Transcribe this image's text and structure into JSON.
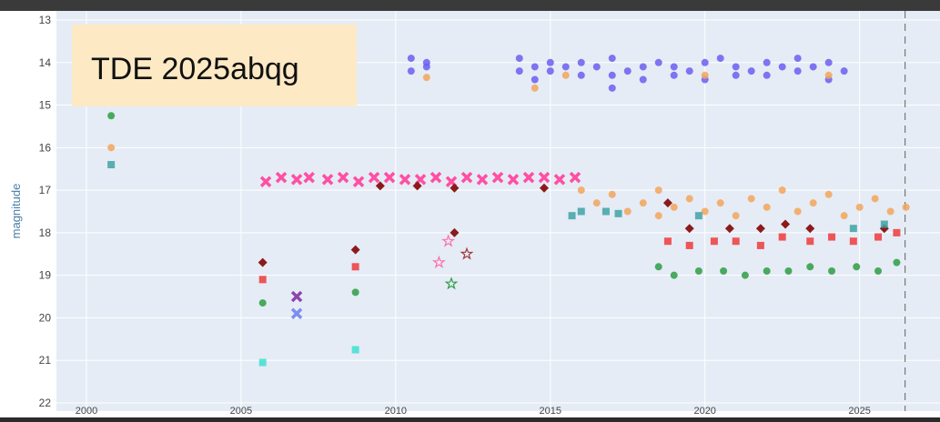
{
  "chart_data": {
    "type": "scatter",
    "title": "TDE 2025abqg",
    "y_label": "magnitude",
    "xlim": [
      1999.03,
      2027.6
    ],
    "ylim": [
      22,
      13
    ],
    "xticks": [
      2000,
      2005,
      2010,
      2015,
      2020,
      2025
    ],
    "yticks": [
      13,
      14,
      15,
      16,
      17,
      18,
      19,
      20,
      21,
      22
    ],
    "grid": true,
    "vline": 2026.47,
    "series": [
      {
        "color": "#6b5ff0",
        "symbol": "circle",
        "x": [
          2010.5,
          2010.5,
          2011.0,
          2011.0,
          2014.0,
          2014.0,
          2014.5,
          2014.5,
          2015.0,
          2015.0,
          2015.5,
          2016.0,
          2016.0,
          2016.5,
          2017.0,
          2017.0,
          2017.0,
          2017.5,
          2018.0,
          2018.0,
          2018.5,
          2019.0,
          2019.0,
          2019.5,
          2020.0,
          2020.0,
          2020.5,
          2021.0,
          2021.0,
          2021.5,
          2022.0,
          2022.0,
          2022.5,
          2023.0,
          2023.0,
          2023.5,
          2024.0,
          2024.0,
          2024.5
        ],
        "values": [
          13.9,
          14.2,
          14.0,
          14.1,
          14.2,
          13.9,
          14.1,
          14.4,
          14.0,
          14.2,
          14.1,
          14.0,
          14.3,
          14.1,
          14.6,
          13.9,
          14.3,
          14.2,
          14.1,
          14.4,
          14.0,
          14.3,
          14.1,
          14.2,
          14.0,
          14.4,
          13.9,
          14.1,
          14.3,
          14.2,
          14.0,
          14.3,
          14.1,
          14.2,
          13.9,
          14.1,
          14.0,
          14.4,
          14.2
        ]
      },
      {
        "color": "#f3a65a",
        "symbol": "circle",
        "x": [
          2000.8,
          2011.0,
          2014.5,
          2015.5,
          2020.0,
          2024.0,
          2016.0,
          2016.5,
          2017.0,
          2017.5,
          2018.0,
          2018.5,
          2018.5,
          2019.0,
          2019.5,
          2020.0,
          2020.5,
          2021.0,
          2021.5,
          2022.0,
          2022.5,
          2023.0,
          2023.5,
          2024.0,
          2024.5,
          2025.0,
          2025.5,
          2026.0,
          2026.5
        ],
        "values": [
          16.0,
          14.35,
          14.6,
          14.3,
          14.3,
          14.3,
          17.0,
          17.3,
          17.1,
          17.5,
          17.3,
          17.0,
          17.6,
          17.4,
          17.2,
          17.5,
          17.3,
          17.6,
          17.2,
          17.4,
          17.0,
          17.5,
          17.3,
          17.1,
          17.6,
          17.4,
          17.2,
          17.5,
          17.4
        ]
      },
      {
        "color": "#ff4fa3",
        "symbol": "x",
        "x": [
          2005.8,
          2006.3,
          2006.8,
          2007.2,
          2007.8,
          2008.3,
          2008.8,
          2009.3,
          2009.8,
          2010.3,
          2010.8,
          2011.3,
          2011.8,
          2012.3,
          2012.8,
          2013.3,
          2013.8,
          2014.3,
          2014.8,
          2015.3,
          2015.8
        ],
        "values": [
          16.8,
          16.7,
          16.75,
          16.7,
          16.75,
          16.7,
          16.8,
          16.7,
          16.7,
          16.75,
          16.75,
          16.7,
          16.8,
          16.7,
          16.75,
          16.7,
          16.75,
          16.7,
          16.7,
          16.75,
          16.7
        ]
      },
      {
        "color": "#8b1a1a",
        "symbol": "diamond",
        "x": [
          2005.7,
          2008.7,
          2009.5,
          2010.7,
          2011.9,
          2011.9,
          2014.8,
          2018.8,
          2019.5,
          2020.8,
          2021.8,
          2022.6,
          2023.4,
          2025.8
        ],
        "values": [
          18.7,
          18.4,
          16.9,
          16.9,
          16.95,
          18.0,
          16.95,
          17.3,
          17.9,
          17.9,
          17.9,
          17.8,
          17.9,
          17.9
        ]
      },
      {
        "color": "#ef3b3b",
        "symbol": "square",
        "x": [
          2005.7,
          2008.7,
          2018.8,
          2019.5,
          2020.3,
          2021.0,
          2021.8,
          2022.5,
          2023.4,
          2024.1,
          2024.8,
          2025.6,
          2026.2
        ],
        "values": [
          19.1,
          18.8,
          18.2,
          18.3,
          18.2,
          18.2,
          18.3,
          18.1,
          18.2,
          18.1,
          18.2,
          18.1,
          18.0
        ]
      },
      {
        "color": "#2e9e44",
        "symbol": "circle",
        "x": [
          2000.8,
          2005.7,
          2008.7,
          2018.5,
          2019.0,
          2019.8,
          2020.6,
          2021.3,
          2022.0,
          2022.7,
          2023.4,
          2024.1,
          2024.9,
          2025.6,
          2026.2
        ],
        "values": [
          15.25,
          19.65,
          19.4,
          18.8,
          19.0,
          18.9,
          18.9,
          19.0,
          18.9,
          18.9,
          18.8,
          18.9,
          18.8,
          18.9,
          18.7
        ]
      },
      {
        "color": "#3fa3a3",
        "symbol": "square",
        "x": [
          2000.8,
          2015.7,
          2016.0,
          2016.8,
          2017.2,
          2019.8,
          2024.8,
          2025.8
        ],
        "values": [
          16.4,
          17.6,
          17.5,
          17.5,
          17.55,
          17.6,
          17.9,
          17.8
        ]
      },
      {
        "color": "#40e0d0",
        "symbol": "square",
        "x": [
          2005.7,
          2008.7
        ],
        "values": [
          21.05,
          20.75
        ]
      },
      {
        "color": "#8e44ad",
        "symbol": "x",
        "x": [
          2006.8
        ],
        "values": [
          19.5
        ]
      },
      {
        "color": "#7b8ff0",
        "symbol": "x",
        "x": [
          2006.8
        ],
        "values": [
          19.9
        ]
      },
      {
        "color": "#ff6fa8",
        "symbol": "star",
        "x": [
          2011.4,
          2011.7
        ],
        "values": [
          18.7,
          18.2
        ]
      },
      {
        "color": "#2e9e44",
        "symbol": "star",
        "x": [
          2011.8
        ],
        "values": [
          19.2
        ]
      },
      {
        "color": "#a03a3a",
        "symbol": "star",
        "x": [
          2012.3
        ],
        "values": [
          18.5
        ]
      }
    ]
  }
}
